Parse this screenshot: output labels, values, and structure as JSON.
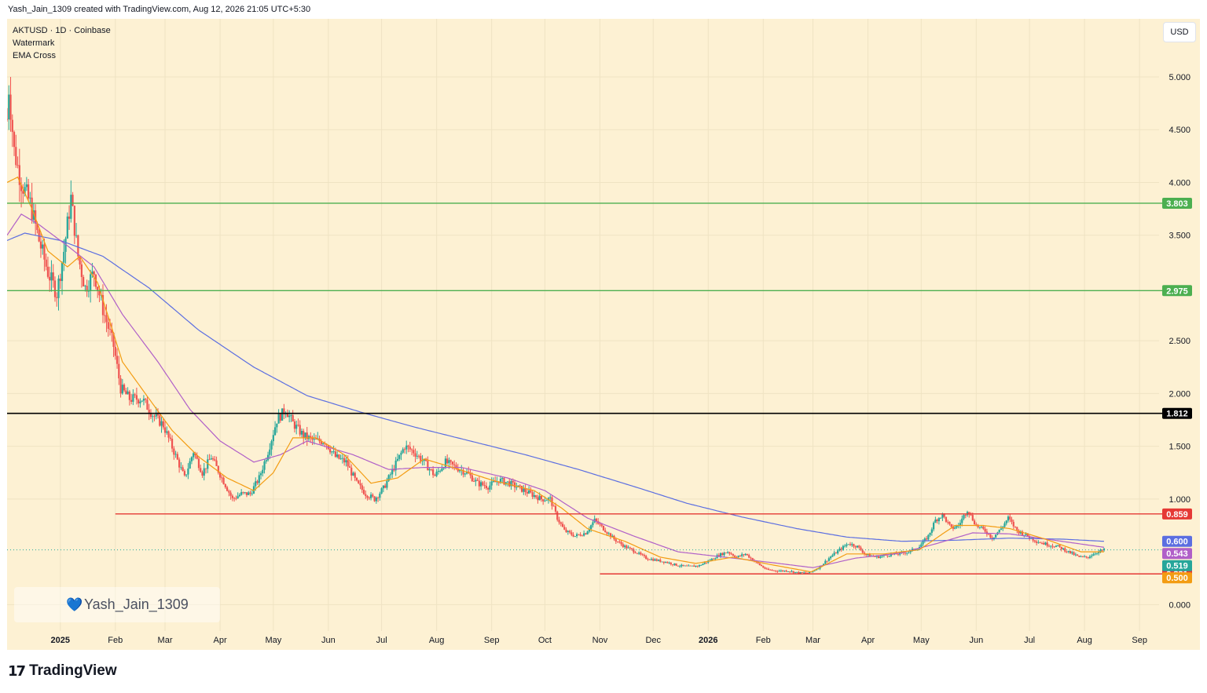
{
  "header": {
    "caption": "Yash_Jain_1309 created with TradingView.com, Aug 12, 2026 21:05 UTC+5:30"
  },
  "legend": {
    "symbol": "AKTUSD · 1D · Coinbase",
    "indicator_1": "Watermark",
    "indicator_2": "EMA Cross"
  },
  "currency": "USD",
  "watermark": {
    "text": "Yash_Jain_1309",
    "icon": "heart-icon"
  },
  "footer": {
    "brand": "TradingView",
    "logo_mark": "17",
    "icon": "tradingview-logo-icon"
  },
  "colors": {
    "background": "#fdf1d3",
    "candle_up": "#26a69a",
    "candle_down": "#ef5350",
    "ema_fast": "#f39c12",
    "ema_mid": "#b05fc8",
    "ema_slow": "#5b6ee1",
    "support_green": "#4caf50",
    "key_black": "#000000",
    "level_red": "#e53935"
  },
  "chart_data": {
    "type": "candlestick",
    "symbol": "AKTUSD",
    "timeframe": "1D",
    "exchange": "Coinbase",
    "y_axis": {
      "ticks": [
        {
          "value": 5.0,
          "label": "5.000"
        },
        {
          "value": 4.5,
          "label": "4.500"
        },
        {
          "value": 4.0,
          "label": "4.000"
        },
        {
          "value": 3.5,
          "label": "3.500"
        },
        {
          "value": 2.5,
          "label": "2.500"
        },
        {
          "value": 2.0,
          "label": "2.000"
        },
        {
          "value": 1.5,
          "label": "1.500"
        },
        {
          "value": 1.0,
          "label": "1.000"
        },
        {
          "value": 0.0,
          "label": "0.000"
        }
      ],
      "ylim": [
        -0.25,
        5.55
      ]
    },
    "x_axis": {
      "start": "2024-12-02",
      "end": "2026-09-12",
      "ticks": [
        {
          "date": "2025-01-01",
          "label": "2025",
          "bold": true
        },
        {
          "date": "2025-02-01",
          "label": "Feb"
        },
        {
          "date": "2025-03-01",
          "label": "Mar"
        },
        {
          "date": "2025-04-01",
          "label": "Apr"
        },
        {
          "date": "2025-05-01",
          "label": "May"
        },
        {
          "date": "2025-06-01",
          "label": "Jun"
        },
        {
          "date": "2025-07-01",
          "label": "Jul"
        },
        {
          "date": "2025-08-01",
          "label": "Aug"
        },
        {
          "date": "2025-09-01",
          "label": "Sep"
        },
        {
          "date": "2025-10-01",
          "label": "Oct"
        },
        {
          "date": "2025-11-01",
          "label": "Nov"
        },
        {
          "date": "2025-12-01",
          "label": "Dec"
        },
        {
          "date": "2026-01-01",
          "label": "2026",
          "bold": true
        },
        {
          "date": "2026-02-01",
          "label": "Feb"
        },
        {
          "date": "2026-03-01",
          "label": "Mar"
        },
        {
          "date": "2026-04-01",
          "label": "Apr"
        },
        {
          "date": "2026-05-01",
          "label": "May"
        },
        {
          "date": "2026-06-01",
          "label": "Jun"
        },
        {
          "date": "2026-07-01",
          "label": "Jul"
        },
        {
          "date": "2026-08-01",
          "label": "Aug"
        },
        {
          "date": "2026-09-01",
          "label": "Sep"
        }
      ]
    },
    "horizontal_levels": [
      {
        "value": 3.803,
        "label": "3.803",
        "color": "#4caf50",
        "from": "2024-12-02"
      },
      {
        "value": 2.975,
        "label": "2.975",
        "color": "#4caf50",
        "from": "2024-12-02"
      },
      {
        "value": 1.812,
        "label": "1.812",
        "color": "#000000",
        "from": "2024-12-02"
      },
      {
        "value": 0.859,
        "label": "0.859",
        "color": "#e53935",
        "from": "2025-02-01"
      },
      {
        "value": 0.291,
        "label": "0.291",
        "color": "#e53935",
        "from": "2025-11-01"
      }
    ],
    "price_tags": [
      {
        "value": 0.6,
        "label": "0.600",
        "color": "#5b6ee1"
      },
      {
        "value": 0.543,
        "label": "0.543",
        "color": "#b05fc8"
      },
      {
        "value": 0.519,
        "label": "0.519",
        "color": "#26a69a"
      },
      {
        "value": 0.5,
        "label": "0.500",
        "color": "#f39c12"
      }
    ],
    "last_price": 0.519,
    "price_path": [
      [
        "2024-12-02",
        4.6
      ],
      [
        "2024-12-03",
        4.9
      ],
      [
        "2024-12-06",
        4.3
      ],
      [
        "2024-12-10",
        4.0
      ],
      [
        "2024-12-15",
        3.8
      ],
      [
        "2024-12-20",
        3.45
      ],
      [
        "2024-12-25",
        3.15
      ],
      [
        "2024-12-30",
        2.95
      ],
      [
        "2025-01-03",
        3.35
      ],
      [
        "2025-01-07",
        3.85
      ],
      [
        "2025-01-11",
        3.3
      ],
      [
        "2025-01-15",
        3.0
      ],
      [
        "2025-01-20",
        3.15
      ],
      [
        "2025-01-25",
        2.8
      ],
      [
        "2025-01-31",
        2.45
      ],
      [
        "2025-02-04",
        2.05
      ],
      [
        "2025-02-09",
        1.95
      ],
      [
        "2025-02-16",
        1.95
      ],
      [
        "2025-02-22",
        1.8
      ],
      [
        "2025-02-28",
        1.7
      ],
      [
        "2025-03-06",
        1.45
      ],
      [
        "2025-03-12",
        1.2
      ],
      [
        "2025-03-17",
        1.45
      ],
      [
        "2025-03-22",
        1.25
      ],
      [
        "2025-03-27",
        1.4
      ],
      [
        "2025-04-02",
        1.2
      ],
      [
        "2025-04-08",
        1.0
      ],
      [
        "2025-04-13",
        1.05
      ],
      [
        "2025-04-18",
        1.05
      ],
      [
        "2025-04-23",
        1.2
      ],
      [
        "2025-04-28",
        1.45
      ],
      [
        "2025-05-03",
        1.75
      ],
      [
        "2025-05-08",
        1.85
      ],
      [
        "2025-05-12",
        1.72
      ],
      [
        "2025-05-18",
        1.6
      ],
      [
        "2025-05-24",
        1.55
      ],
      [
        "2025-05-30",
        1.55
      ],
      [
        "2025-06-05",
        1.4
      ],
      [
        "2025-06-11",
        1.35
      ],
      [
        "2025-06-17",
        1.15
      ],
      [
        "2025-06-22",
        1.05
      ],
      [
        "2025-06-27",
        1.0
      ],
      [
        "2025-07-02",
        1.1
      ],
      [
        "2025-07-08",
        1.3
      ],
      [
        "2025-07-14",
        1.5
      ],
      [
        "2025-07-19",
        1.45
      ],
      [
        "2025-07-25",
        1.35
      ],
      [
        "2025-07-31",
        1.22
      ],
      [
        "2025-08-06",
        1.35
      ],
      [
        "2025-08-12",
        1.3
      ],
      [
        "2025-08-18",
        1.25
      ],
      [
        "2025-08-24",
        1.15
      ],
      [
        "2025-08-30",
        1.12
      ],
      [
        "2025-09-05",
        1.18
      ],
      [
        "2025-09-11",
        1.15
      ],
      [
        "2025-09-17",
        1.1
      ],
      [
        "2025-09-23",
        1.05
      ],
      [
        "2025-09-29",
        1.0
      ],
      [
        "2025-10-04",
        1.0
      ],
      [
        "2025-10-08",
        0.82
      ],
      [
        "2025-10-12",
        0.7
      ],
      [
        "2025-10-18",
        0.65
      ],
      [
        "2025-10-24",
        0.68
      ],
      [
        "2025-10-29",
        0.8
      ],
      [
        "2025-11-03",
        0.72
      ],
      [
        "2025-11-09",
        0.62
      ],
      [
        "2025-11-15",
        0.55
      ],
      [
        "2025-11-21",
        0.5
      ],
      [
        "2025-11-27",
        0.44
      ],
      [
        "2025-12-03",
        0.42
      ],
      [
        "2025-12-09",
        0.4
      ],
      [
        "2025-12-15",
        0.37
      ],
      [
        "2025-12-21",
        0.36
      ],
      [
        "2025-12-27",
        0.37
      ],
      [
        "2026-01-02",
        0.42
      ],
      [
        "2026-01-07",
        0.47
      ],
      [
        "2026-01-12",
        0.5
      ],
      [
        "2026-01-17",
        0.45
      ],
      [
        "2026-01-22",
        0.48
      ],
      [
        "2026-01-28",
        0.4
      ],
      [
        "2026-02-03",
        0.33
      ],
      [
        "2026-02-09",
        0.32
      ],
      [
        "2026-02-15",
        0.32
      ],
      [
        "2026-02-21",
        0.3
      ],
      [
        "2026-02-27",
        0.3
      ],
      [
        "2026-03-05",
        0.36
      ],
      [
        "2026-03-10",
        0.44
      ],
      [
        "2026-03-16",
        0.52
      ],
      [
        "2026-03-21",
        0.58
      ],
      [
        "2026-03-26",
        0.55
      ],
      [
        "2026-03-31",
        0.47
      ],
      [
        "2026-04-06",
        0.45
      ],
      [
        "2026-04-12",
        0.47
      ],
      [
        "2026-04-18",
        0.48
      ],
      [
        "2026-04-24",
        0.5
      ],
      [
        "2026-04-30",
        0.55
      ],
      [
        "2026-05-05",
        0.65
      ],
      [
        "2026-05-09",
        0.8
      ],
      [
        "2026-05-13",
        0.85
      ],
      [
        "2026-05-18",
        0.72
      ],
      [
        "2026-05-22",
        0.75
      ],
      [
        "2026-05-27",
        0.9
      ],
      [
        "2026-06-01",
        0.75
      ],
      [
        "2026-06-06",
        0.7
      ],
      [
        "2026-06-10",
        0.63
      ],
      [
        "2026-06-15",
        0.72
      ],
      [
        "2026-06-19",
        0.82
      ],
      [
        "2026-06-24",
        0.7
      ],
      [
        "2026-06-29",
        0.66
      ],
      [
        "2026-07-05",
        0.6
      ],
      [
        "2026-07-11",
        0.57
      ],
      [
        "2026-07-17",
        0.55
      ],
      [
        "2026-07-23",
        0.5
      ],
      [
        "2026-07-29",
        0.45
      ],
      [
        "2026-08-03",
        0.45
      ],
      [
        "2026-08-07",
        0.49
      ],
      [
        "2026-08-12",
        0.519
      ]
    ],
    "ema_fast_path": [
      [
        "2024-12-02",
        4.0
      ],
      [
        "2024-12-08",
        4.05
      ],
      [
        "2024-12-16",
        3.75
      ],
      [
        "2024-12-25",
        3.35
      ],
      [
        "2025-01-05",
        3.2
      ],
      [
        "2025-01-12",
        3.3
      ],
      [
        "2025-01-22",
        3.05
      ],
      [
        "2025-02-05",
        2.3
      ],
      [
        "2025-02-20",
        1.95
      ],
      [
        "2025-03-05",
        1.65
      ],
      [
        "2025-03-20",
        1.4
      ],
      [
        "2025-04-05",
        1.2
      ],
      [
        "2025-04-20",
        1.08
      ],
      [
        "2025-05-01",
        1.25
      ],
      [
        "2025-05-12",
        1.58
      ],
      [
        "2025-05-25",
        1.58
      ],
      [
        "2025-06-10",
        1.42
      ],
      [
        "2025-06-25",
        1.15
      ],
      [
        "2025-07-10",
        1.2
      ],
      [
        "2025-07-25",
        1.38
      ],
      [
        "2025-08-10",
        1.3
      ],
      [
        "2025-09-01",
        1.18
      ],
      [
        "2025-09-25",
        1.08
      ],
      [
        "2025-10-10",
        0.92
      ],
      [
        "2025-10-25",
        0.72
      ],
      [
        "2025-11-15",
        0.6
      ],
      [
        "2025-12-05",
        0.45
      ],
      [
        "2025-12-25",
        0.39
      ],
      [
        "2026-01-15",
        0.45
      ],
      [
        "2026-02-05",
        0.38
      ],
      [
        "2026-02-28",
        0.31
      ],
      [
        "2026-03-20",
        0.48
      ],
      [
        "2026-04-10",
        0.48
      ],
      [
        "2026-04-30",
        0.52
      ],
      [
        "2026-05-20",
        0.75
      ],
      [
        "2026-06-05",
        0.75
      ],
      [
        "2026-06-20",
        0.72
      ],
      [
        "2026-07-10",
        0.62
      ],
      [
        "2026-07-30",
        0.5
      ],
      [
        "2026-08-12",
        0.5
      ]
    ],
    "ema_mid_path": [
      [
        "2024-12-02",
        3.5
      ],
      [
        "2024-12-10",
        3.7
      ],
      [
        "2024-12-20",
        3.6
      ],
      [
        "2025-01-05",
        3.4
      ],
      [
        "2025-01-20",
        3.2
      ],
      [
        "2025-02-05",
        2.75
      ],
      [
        "2025-02-25",
        2.3
      ],
      [
        "2025-03-15",
        1.85
      ],
      [
        "2025-04-01",
        1.55
      ],
      [
        "2025-04-20",
        1.35
      ],
      [
        "2025-05-05",
        1.42
      ],
      [
        "2025-05-20",
        1.55
      ],
      [
        "2025-06-15",
        1.42
      ],
      [
        "2025-07-05",
        1.28
      ],
      [
        "2025-07-25",
        1.3
      ],
      [
        "2025-08-15",
        1.3
      ],
      [
        "2025-09-10",
        1.2
      ],
      [
        "2025-10-01",
        1.08
      ],
      [
        "2025-10-25",
        0.82
      ],
      [
        "2025-11-20",
        0.65
      ],
      [
        "2025-12-15",
        0.5
      ],
      [
        "2026-01-10",
        0.45
      ],
      [
        "2026-02-05",
        0.4
      ],
      [
        "2026-03-01",
        0.35
      ],
      [
        "2026-03-25",
        0.44
      ],
      [
        "2026-04-20",
        0.49
      ],
      [
        "2026-05-10",
        0.58
      ],
      [
        "2026-05-30",
        0.68
      ],
      [
        "2026-06-20",
        0.67
      ],
      [
        "2026-07-15",
        0.61
      ],
      [
        "2026-08-12",
        0.543
      ]
    ],
    "ema_slow_path": [
      [
        "2024-12-02",
        3.45
      ],
      [
        "2024-12-12",
        3.52
      ],
      [
        "2025-01-01",
        3.45
      ],
      [
        "2025-01-25",
        3.3
      ],
      [
        "2025-02-20",
        3.0
      ],
      [
        "2025-03-20",
        2.6
      ],
      [
        "2025-04-20",
        2.25
      ],
      [
        "2025-05-20",
        1.98
      ],
      [
        "2025-06-20",
        1.82
      ],
      [
        "2025-07-20",
        1.68
      ],
      [
        "2025-08-20",
        1.55
      ],
      [
        "2025-09-20",
        1.42
      ],
      [
        "2025-10-20",
        1.28
      ],
      [
        "2025-11-20",
        1.12
      ],
      [
        "2025-12-20",
        0.96
      ],
      [
        "2026-01-20",
        0.83
      ],
      [
        "2026-02-20",
        0.72
      ],
      [
        "2026-03-20",
        0.64
      ],
      [
        "2026-04-20",
        0.6
      ],
      [
        "2026-05-20",
        0.61
      ],
      [
        "2026-06-20",
        0.63
      ],
      [
        "2026-07-20",
        0.62
      ],
      [
        "2026-08-12",
        0.6
      ]
    ],
    "grid": true
  }
}
